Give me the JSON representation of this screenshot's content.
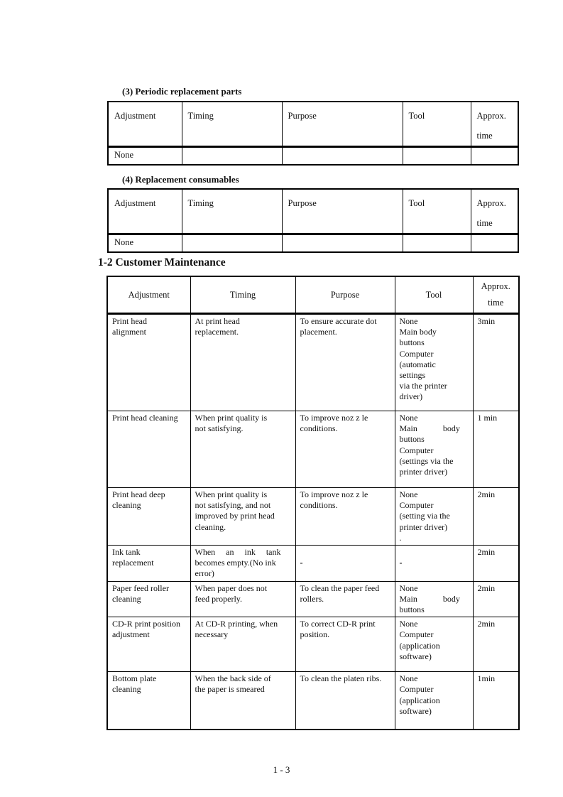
{
  "document": {
    "footer_page_number": "1 - 3",
    "sections": [
      {
        "heading": "(3) Periodic replacement parts",
        "table": {
          "headers": [
            "Adjustment",
            "Timing",
            "Purpose",
            "Tool",
            "Approx.\ntime"
          ],
          "rows": [
            [
              "None",
              "",
              "",
              "",
              ""
            ]
          ]
        }
      },
      {
        "heading": "(4) Replacement consumables",
        "table": {
          "headers": [
            "Adjustment",
            "Timing",
            "Purpose",
            "Tool",
            "Approx.\ntime"
          ],
          "rows": [
            [
              "None",
              "",
              "",
              "",
              ""
            ]
          ]
        }
      },
      {
        "heading": "1-2 Customer Maintenance",
        "table": {
          "headers": [
            "Adjustment",
            "Timing",
            "Purpose",
            "Tool",
            "Approx.\ntime"
          ],
          "rows": [
            [
              "Print head\nalignment",
              "At print head\nreplacement.",
              "To ensure accurate dot\nplacement.",
              "None\nMain body\nbuttons\nComputer\n(automatic\nsettings\nvia the printer\ndriver)",
              "3min"
            ],
            [
              "Print head cleaning",
              "When print quality is\nnot satisfying.",
              "To improve noz z le\nconditions.",
              "None\nMain            body\nbuttons\nComputer\n(settings via the\nprinter driver)",
              "1 min"
            ],
            [
              "Print head deep\ncleaning",
              "When print quality is\nnot satisfying, and not\nimproved by print head\ncleaning.",
              "To improve noz z le\nconditions.",
              "None\nComputer\n(setting via the\nprinter driver)\n.",
              "2min"
            ],
            [
              "Ink tank\nreplacement",
              "When     an     ink     tank\nbecomes empty.(No ink\nerror)",
              "-",
              "-",
              "2min"
            ],
            [
              "Paper feed roller\ncleaning",
              "When paper does not\nfeed properly.",
              "To clean the paper feed\nrollers.",
              "None\nMain            body\nbuttons",
              "2min"
            ],
            [
              "CD-R print position\nadjustment",
              "At CD-R printing, when\nnecessary",
              "To correct CD-R print\nposition.",
              "None\nComputer\n(application\nsoftware)",
              "2min"
            ],
            [
              "Bottom plate\ncleaning",
              "When the back side of\nthe paper is smeared",
              "To clean the platen ribs.",
              "None\nComputer\n(application\nsoftware)",
              "1min"
            ]
          ]
        }
      }
    ]
  }
}
